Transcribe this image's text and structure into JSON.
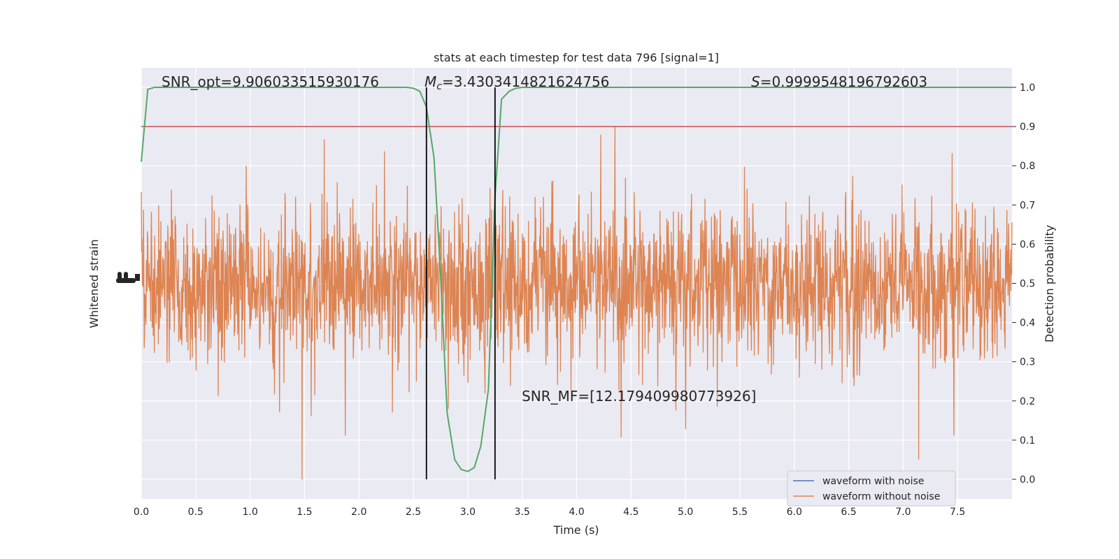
{
  "chart_data": {
    "type": "line",
    "title": "stats at each timestep for test data 796 [signal=1]",
    "xlabel": "Time (s)",
    "ylabel_left": "Whitened strain",
    "ylabel_right": "Detection probability",
    "xlim": [
      0.0,
      8.0
    ],
    "ylim_right": [
      -0.05,
      1.05
    ],
    "x_ticks": [
      "0.0",
      "0.5",
      "1.0",
      "1.5",
      "2.0",
      "2.5",
      "3.0",
      "3.5",
      "4.0",
      "4.5",
      "5.0",
      "5.5",
      "6.0",
      "6.5",
      "7.0",
      "7.5"
    ],
    "x_tick_values": [
      0.0,
      0.5,
      1.0,
      1.5,
      2.0,
      2.5,
      3.0,
      3.5,
      4.0,
      4.5,
      5.0,
      5.5,
      6.0,
      6.5,
      7.0,
      7.5
    ],
    "y_right_ticks": [
      "0.0",
      "0.1",
      "0.2",
      "0.3",
      "0.4",
      "0.5",
      "0.6",
      "0.7",
      "0.8",
      "0.9",
      "1.0"
    ],
    "y_right_tick_values": [
      0.0,
      0.1,
      0.2,
      0.3,
      0.4,
      0.5,
      0.6,
      0.7,
      0.8,
      0.9,
      1.0
    ],
    "grid": true,
    "legend_position": "lower-right",
    "legend": [
      {
        "label": "waveform with noise",
        "color": "#4c72b0"
      },
      {
        "label": "waveform without noise",
        "color": "#dd8452"
      }
    ],
    "annotations": {
      "snr_opt": "SNR_opt=9.906033515930176",
      "mc_prefix": "M",
      "mc_sub": "c",
      "mc_value": "=3.4303414821624756",
      "s_prefix": "S",
      "s_value": "=0.9999548196792603",
      "snr_mf": "SNR_MF=[12.179409980773926]"
    },
    "threshold": {
      "value": 0.9,
      "color": "#c44e52"
    },
    "vertical_lines": [
      2.62,
      3.25
    ],
    "detection_probability": {
      "color": "#55a868",
      "x": [
        0.0,
        0.06,
        0.12,
        0.19,
        0.25,
        0.5,
        1.0,
        1.5,
        2.0,
        2.25,
        2.38,
        2.44,
        2.5,
        2.56,
        2.62,
        2.69,
        2.75,
        2.81,
        2.88,
        2.94,
        3.0,
        3.06,
        3.12,
        3.19,
        3.25,
        3.31,
        3.38,
        3.44,
        3.5,
        4.0,
        5.0,
        6.0,
        7.0,
        7.5,
        8.0
      ],
      "y": [
        0.81,
        0.995,
        1.0,
        1.0,
        1.0,
        1.0,
        1.0,
        1.0,
        1.0,
        1.0,
        1.0,
        1.0,
        0.998,
        0.99,
        0.95,
        0.82,
        0.52,
        0.17,
        0.05,
        0.025,
        0.02,
        0.03,
        0.085,
        0.23,
        0.72,
        0.97,
        0.99,
        0.998,
        1.0,
        1.0,
        1.0,
        1.0,
        1.0,
        1.0,
        1.0
      ]
    },
    "strain_series": [
      {
        "name": "waveform without noise",
        "color": "#dd8452",
        "description_range": [
          0.0,
          1.0
        ]
      }
    ]
  }
}
